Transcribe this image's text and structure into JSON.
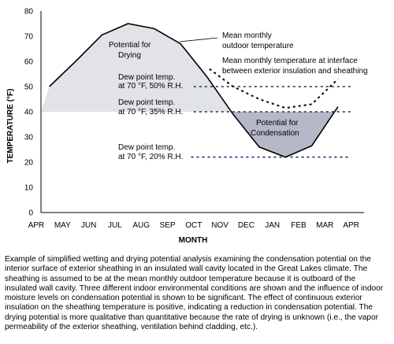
{
  "chart_data": {
    "type": "line",
    "ylabel": "TEMPERATURE (°F)",
    "xlabel": "MONTH",
    "ylim": [
      0,
      80
    ],
    "yticks": [
      0,
      10,
      20,
      30,
      40,
      50,
      60,
      70,
      80
    ],
    "categories": [
      "APR",
      "MAY",
      "JUN",
      "JUL",
      "AUG",
      "SEP",
      "OCT",
      "NOV",
      "DEC",
      "JAN",
      "FEB",
      "MAR",
      "APR"
    ],
    "series": [
      {
        "name": "Mean monthly outdoor temperature",
        "style": "solid",
        "x": [
          0.5,
          1.5,
          2.5,
          3.5,
          4.5,
          5.5,
          6.5,
          7.5,
          8.5,
          9.5,
          10.5,
          11.5
        ],
        "values": [
          50,
          60,
          70.5,
          75,
          73,
          67,
          54,
          39,
          26,
          22,
          26.5,
          42
        ]
      },
      {
        "name": "Mean monthly temperature at interface between exterior insulation and sheathing",
        "style": "dotted",
        "x": [
          6.6,
          7.5,
          8.5,
          9.5,
          10.5,
          11.5
        ],
        "values": [
          57,
          50,
          45,
          41.5,
          43,
          53
        ]
      }
    ],
    "reference_lines": [
      {
        "label": "Dew point temp. at 70 °F, 50% R.H.",
        "value": 50,
        "x_from": 6.0,
        "x_to": 12.0
      },
      {
        "label": "Dew point temp. at 70 °F, 35% R.H.",
        "value": 40,
        "x_from": 6.0,
        "x_to": 12.0
      },
      {
        "label": "Dew point temp. at 70 °F, 20% R.H.",
        "value": 22,
        "x_from": 5.9,
        "x_to": 12.0
      }
    ],
    "annotations": {
      "drying": "Potential for Drying",
      "condensation": "Potential for Condensation",
      "outdoor_label": "Mean monthly outdoor temperature",
      "interface_label": "Mean monthly temperature at interface between exterior insulation and sheathing"
    },
    "colors": {
      "drying_fill": "#e2e3e6",
      "condensation_fill": "#b4b8c7",
      "reference_line": "#1a2a6b",
      "curve": "#000000"
    },
    "grid": false
  },
  "caption": "Example of simplified wetting and drying potential analysis examining the condensation potential on the interior surface of exterior sheathing in an insulated wall cavity located in the Great Lakes climate. The sheathing is assumed to be at the mean monthly outdoor temperature because it is outboard of the insulated wall cavity. Three different indoor environmental conditions are shown and the influence of indoor moisture levels on condensation potential is shown to be significant. The effect of continuous exterior insulation on the sheathing temperature is positive, indicating a reduction in condensation potential. The drying potential is more qualitative than quantitative because the rate of drying is unknown (i.e., the vapor permeability of the exterior sheathing, ventilation behind cladding, etc.)."
}
